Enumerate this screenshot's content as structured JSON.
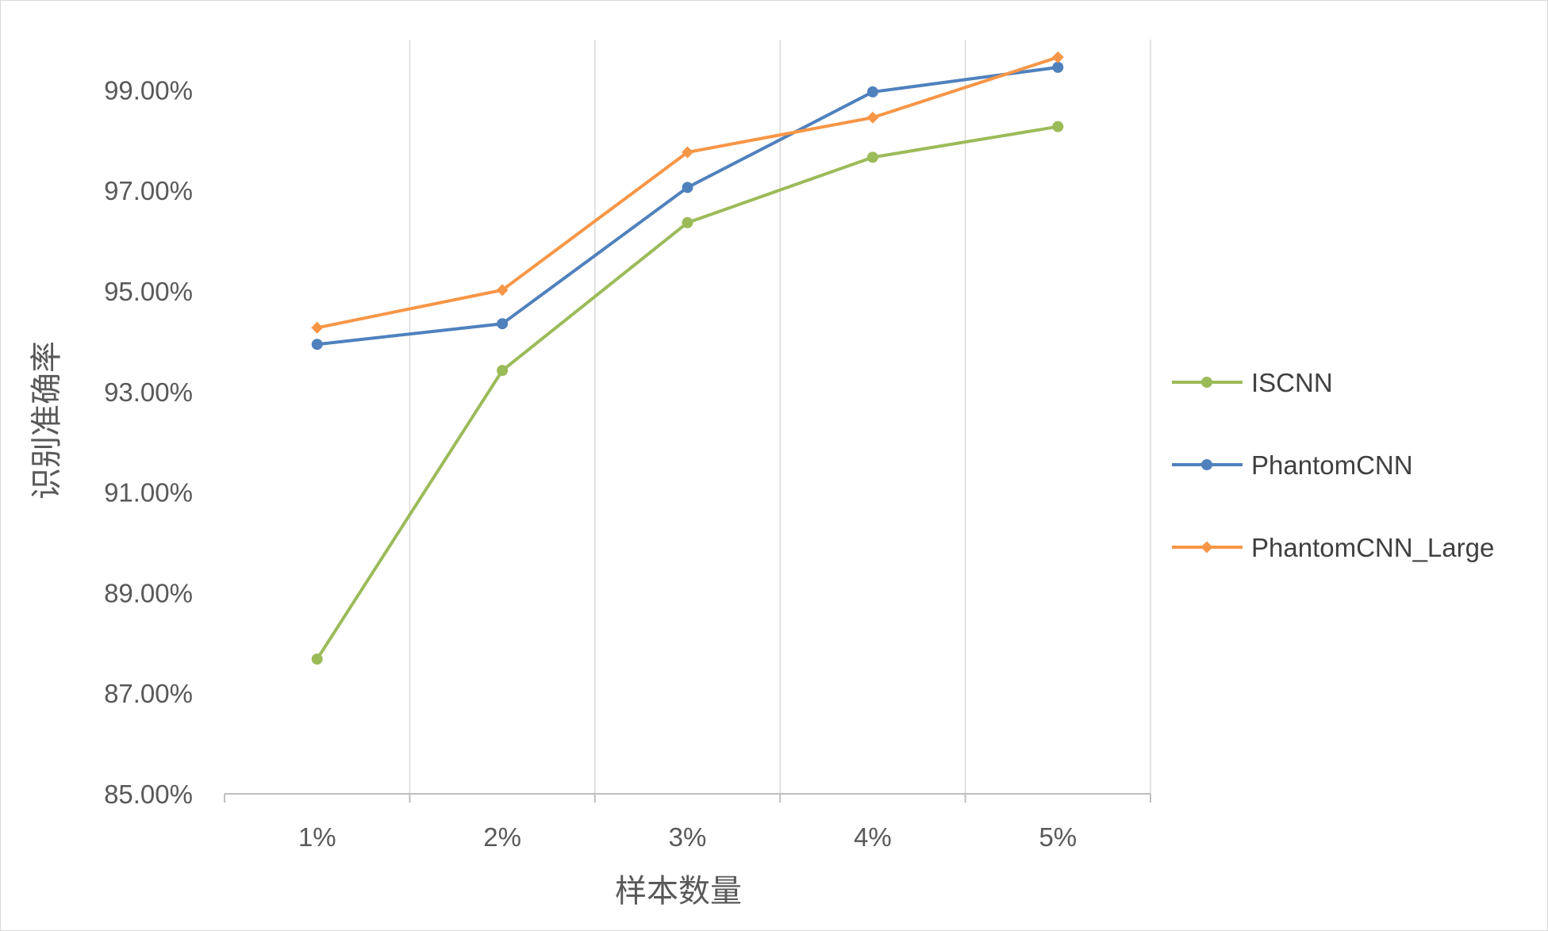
{
  "chart_data": {
    "type": "line",
    "title": "",
    "xlabel": "样本数量",
    "ylabel": "识别准确率",
    "categories": [
      "1%",
      "2%",
      "3%",
      "4%",
      "5%"
    ],
    "ylim": [
      85.0,
      100.0
    ],
    "yticks": [
      85,
      87,
      89,
      91,
      93,
      95,
      97,
      99
    ],
    "ytick_labels": [
      "85.00%",
      "87.00%",
      "89.00%",
      "91.00%",
      "93.00%",
      "95.00%",
      "97.00%",
      "99.00%"
    ],
    "grid": "vertical",
    "legend_position": "right",
    "series": [
      {
        "name": "ISCNN",
        "color": "#9bbb59",
        "marker": "circle",
        "values": [
          87.68,
          93.42,
          96.36,
          97.66,
          98.27
        ]
      },
      {
        "name": "PhantomCNN",
        "color": "#4f81bd",
        "marker": "circle",
        "values": [
          93.94,
          94.35,
          97.06,
          98.96,
          99.45
        ]
      },
      {
        "name": "PhantomCNN_Large",
        "color": "#f79646",
        "marker": "diamond",
        "values": [
          94.27,
          95.02,
          97.76,
          98.45,
          99.65
        ]
      }
    ]
  }
}
